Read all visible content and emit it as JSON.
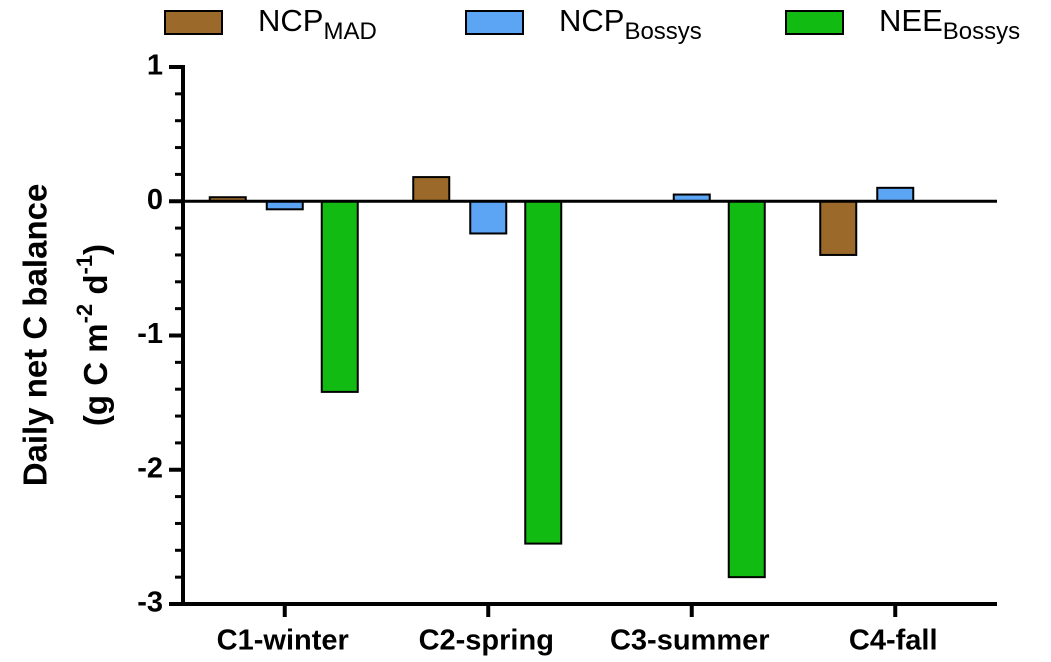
{
  "chart_data": {
    "type": "bar",
    "y_label": "Daily net C balance",
    "y_label_2": [
      "(g C m",
      "-2",
      " d",
      "-1",
      ")"
    ],
    "categories": [
      "C1-winter",
      "C2-spring",
      "C3-summer",
      "C4-fall"
    ],
    "series": [
      {
        "name": "NCP",
        "name_sub": "MAD",
        "color": "#9b6a2b",
        "values": [
          0.03,
          0.18,
          null,
          -0.4
        ]
      },
      {
        "name": "NCP",
        "name_sub": "Bossys",
        "color": "#5ca4f4",
        "values": [
          -0.06,
          -0.24,
          0.05,
          0.1
        ]
      },
      {
        "name": "NEE",
        "name_sub": "Bossys",
        "color": "#12bb12",
        "values": [
          -1.42,
          -2.55,
          -2.8,
          null
        ]
      }
    ],
    "ylim": [
      -3,
      1
    ],
    "yticks": [
      1,
      0,
      -1,
      -2,
      -3
    ],
    "yminor_ticks": [
      0.8,
      0.6,
      0.4,
      0.2,
      -0.2,
      -0.4,
      -0.6,
      -0.8,
      -1.2,
      -1.4,
      -1.6,
      -1.8,
      -2.2,
      -2.4,
      -2.6,
      -2.8
    ],
    "legend": "top"
  }
}
